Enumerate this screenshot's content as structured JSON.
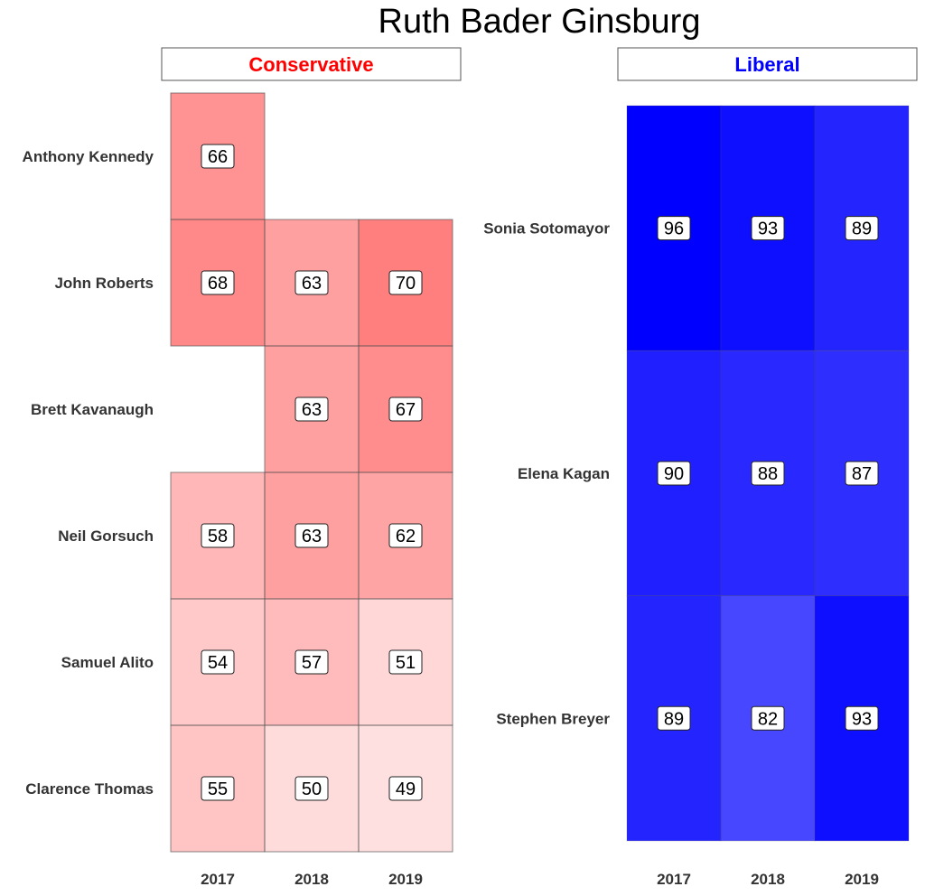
{
  "chart_data": {
    "type": "heatmap",
    "title": "Ruth Bader Ginsburg",
    "panels": [
      {
        "name": "Conservative",
        "label_color": "#ff0000",
        "fill_color": "#ff0000",
        "color_min": 49,
        "color_max": 70,
        "alpha_min": 0.12,
        "alpha_max": 0.5,
        "columns": [
          "2017",
          "2018",
          "2019"
        ],
        "rows": [
          "Anthony Kennedy",
          "John Roberts",
          "Brett Kavanaugh",
          "Neil Gorsuch",
          "Samuel Alito",
          "Clarence Thomas"
        ],
        "values": [
          [
            66,
            null,
            null
          ],
          [
            68,
            63,
            70
          ],
          [
            null,
            63,
            67
          ],
          [
            58,
            63,
            62
          ],
          [
            54,
            57,
            51
          ],
          [
            55,
            50,
            49
          ]
        ]
      },
      {
        "name": "Liberal",
        "label_color": "#0000ff",
        "fill_color": "#0000ff",
        "color_min": 82,
        "color_max": 96,
        "alpha_min": 0.72,
        "alpha_max": 1.0,
        "columns": [
          "2017",
          "2018",
          "2019"
        ],
        "rows": [
          "Sonia Sotomayor",
          "Elena Kagan",
          "Stephen Breyer"
        ],
        "values": [
          [
            96,
            93,
            89
          ],
          [
            90,
            88,
            87
          ],
          [
            89,
            82,
            93
          ]
        ]
      }
    ]
  }
}
